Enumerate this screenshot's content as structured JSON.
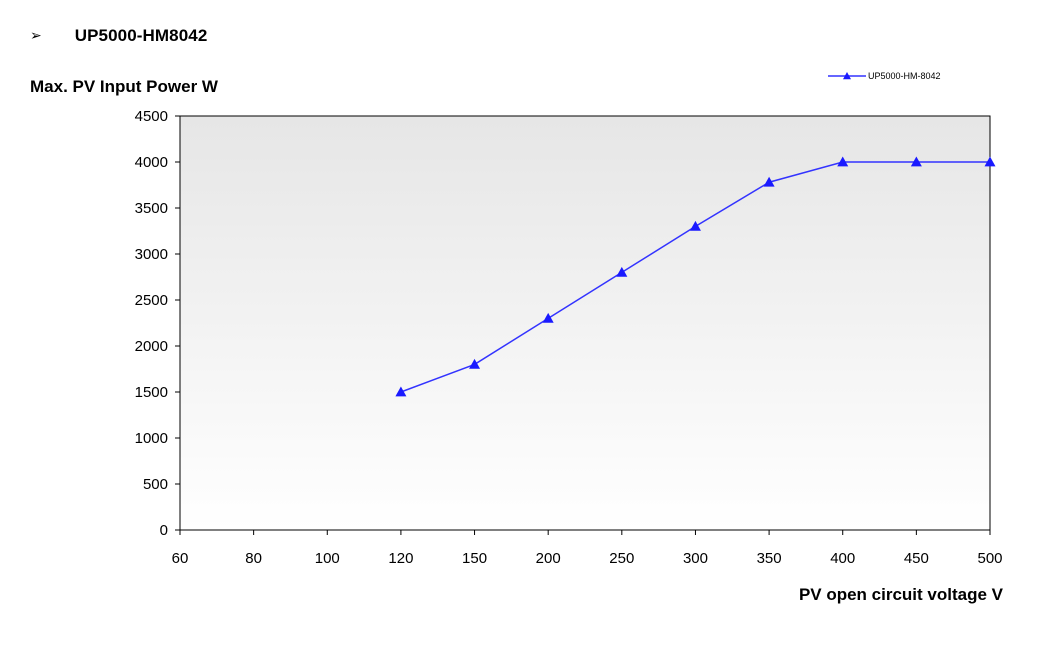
{
  "heading": {
    "bullet_icon": "➢",
    "bullet_icon_name": "arrow-bullet-icon",
    "text": "UP5000-HM8042"
  },
  "colors": {
    "series_line": "#3333ff",
    "marker": "#1a1aff",
    "plot_background_top": "#e6e6e6",
    "plot_background_bottom": "#ffffff",
    "axis": "#000000"
  },
  "chart_data": {
    "type": "line",
    "title": "",
    "ylabel": "Max. PV Input Power W",
    "xlabel": "PV open circuit voltage V",
    "x_scale": "categorical (evenly spaced ticks)",
    "categories": [
      "60",
      "80",
      "100",
      "120",
      "150",
      "200",
      "250",
      "300",
      "350",
      "400",
      "450",
      "500"
    ],
    "ylim": [
      0,
      4500
    ],
    "y_ticks": [
      0,
      500,
      1000,
      1500,
      2000,
      2500,
      3000,
      3500,
      4000,
      4500
    ],
    "grid": false,
    "legend_position": "top-right",
    "series": [
      {
        "name": "UP5000-HM-8042",
        "marker": "triangle",
        "points": [
          {
            "x": "120",
            "y": 1500
          },
          {
            "x": "150",
            "y": 1800
          },
          {
            "x": "200",
            "y": 2300
          },
          {
            "x": "250",
            "y": 2800
          },
          {
            "x": "300",
            "y": 3300
          },
          {
            "x": "350",
            "y": 3780
          },
          {
            "x": "400",
            "y": 4000
          },
          {
            "x": "450",
            "y": 4000
          },
          {
            "x": "500",
            "y": 4000
          }
        ]
      }
    ]
  }
}
